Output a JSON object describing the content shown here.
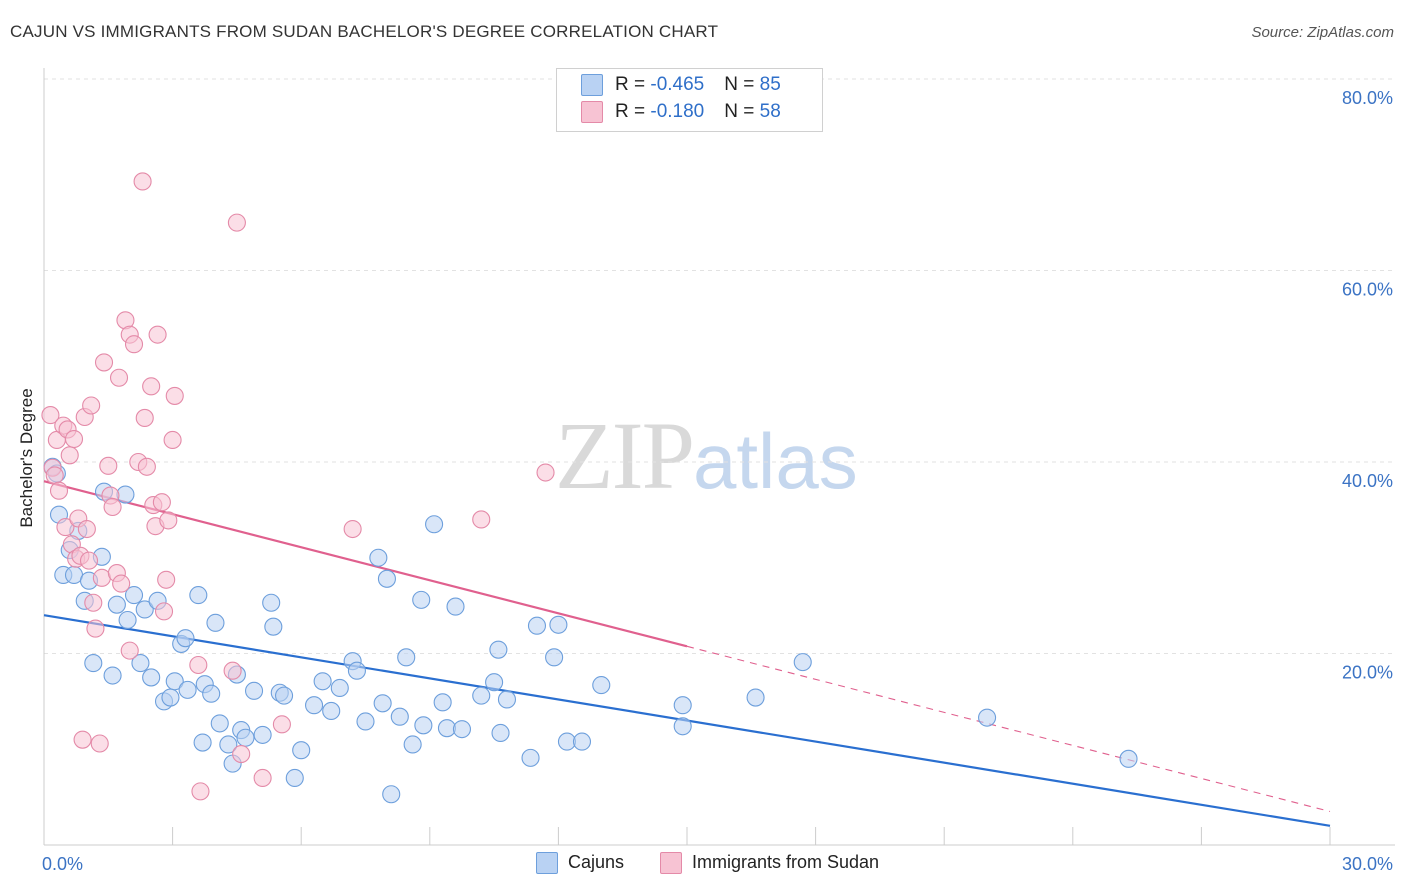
{
  "title": "CAJUN VS IMMIGRANTS FROM SUDAN BACHELOR'S DEGREE CORRELATION CHART",
  "source": "Source: ZipAtlas.com",
  "watermark": {
    "zip": "ZIP",
    "atlas": "atlas"
  },
  "legend": {
    "series1": {
      "r_label": "R = ",
      "r_value": "-0.465",
      "n_label": "N = ",
      "n_value": "85"
    },
    "series2": {
      "r_label": "R = ",
      "r_value": "-0.180",
      "n_label": "N = ",
      "n_value": "58"
    }
  },
  "colors": {
    "blue_fill": "#b9d2f3",
    "blue_stroke": "#6d9fdc",
    "blue_line": "#2a6fd0",
    "pink_fill": "#f7c3d3",
    "pink_stroke": "#e48aa8",
    "pink_line": "#e0608e",
    "axis_label": "#3b73c4",
    "grid": "#e2e2e2"
  },
  "chart_data": {
    "type": "scatter",
    "title": "CAJUN VS IMMIGRANTS FROM SUDAN BACHELOR'S DEGREE CORRELATION CHART",
    "xlabel": "",
    "ylabel": "Bachelor's Degree",
    "xlim": [
      0,
      30
    ],
    "ylim": [
      0,
      80
    ],
    "x_tick_labels": [
      "0.0%",
      "30.0%"
    ],
    "y_tick_values": [
      20,
      40,
      60,
      80
    ],
    "y_tick_labels": [
      "20.0%",
      "40.0%",
      "60.0%",
      "80.0%"
    ],
    "legend_position": "top-center",
    "series": [
      {
        "name": "Cajuns",
        "color": "blue",
        "trend": {
          "x": [
            0,
            30
          ],
          "y": [
            24.0,
            2.0
          ],
          "dashed_from": null
        },
        "points": [
          [
            0.2,
            39.5
          ],
          [
            0.3,
            38.8
          ],
          [
            0.35,
            34.5
          ],
          [
            0.45,
            28.2
          ],
          [
            0.6,
            30.8
          ],
          [
            0.7,
            28.2
          ],
          [
            0.8,
            32.8
          ],
          [
            0.95,
            25.5
          ],
          [
            1.05,
            27.6
          ],
          [
            1.15,
            19.0
          ],
          [
            1.35,
            30.1
          ],
          [
            1.4,
            36.9
          ],
          [
            1.6,
            17.7
          ],
          [
            1.7,
            25.1
          ],
          [
            1.9,
            36.6
          ],
          [
            1.95,
            23.5
          ],
          [
            2.1,
            26.1
          ],
          [
            2.25,
            19.0
          ],
          [
            2.35,
            24.6
          ],
          [
            2.5,
            17.5
          ],
          [
            2.65,
            25.5
          ],
          [
            2.8,
            15.0
          ],
          [
            2.95,
            15.4
          ],
          [
            3.05,
            17.1
          ],
          [
            3.2,
            21.0
          ],
          [
            3.3,
            21.6
          ],
          [
            3.35,
            16.2
          ],
          [
            3.6,
            26.1
          ],
          [
            3.7,
            10.7
          ],
          [
            3.75,
            16.8
          ],
          [
            3.9,
            15.8
          ],
          [
            4.0,
            23.2
          ],
          [
            4.1,
            12.7
          ],
          [
            4.3,
            10.5
          ],
          [
            4.4,
            8.5
          ],
          [
            4.5,
            17.8
          ],
          [
            4.6,
            12.0
          ],
          [
            4.7,
            11.2
          ],
          [
            4.9,
            16.1
          ],
          [
            5.1,
            11.5
          ],
          [
            5.3,
            25.3
          ],
          [
            5.35,
            22.8
          ],
          [
            5.5,
            15.9
          ],
          [
            5.6,
            15.6
          ],
          [
            5.85,
            7.0
          ],
          [
            6.0,
            9.9
          ],
          [
            6.3,
            14.6
          ],
          [
            6.5,
            17.1
          ],
          [
            6.7,
            14.0
          ],
          [
            6.9,
            16.4
          ],
          [
            7.2,
            19.2
          ],
          [
            7.3,
            18.2
          ],
          [
            7.5,
            12.9
          ],
          [
            7.9,
            14.8
          ],
          [
            7.8,
            30.0
          ],
          [
            8.0,
            27.8
          ],
          [
            8.1,
            5.3
          ],
          [
            8.3,
            13.4
          ],
          [
            8.45,
            19.6
          ],
          [
            8.6,
            10.5
          ],
          [
            8.8,
            25.6
          ],
          [
            8.85,
            12.5
          ],
          [
            9.1,
            33.5
          ],
          [
            9.3,
            14.9
          ],
          [
            9.4,
            12.2
          ],
          [
            9.6,
            24.9
          ],
          [
            9.75,
            12.1
          ],
          [
            10.2,
            15.6
          ],
          [
            10.5,
            17.0
          ],
          [
            10.6,
            20.4
          ],
          [
            10.65,
            11.7
          ],
          [
            10.8,
            15.2
          ],
          [
            11.35,
            9.1
          ],
          [
            11.5,
            22.9
          ],
          [
            11.9,
            19.6
          ],
          [
            12.0,
            23.0
          ],
          [
            12.2,
            10.8
          ],
          [
            12.55,
            10.8
          ],
          [
            13.0,
            16.7
          ],
          [
            14.9,
            12.4
          ],
          [
            14.9,
            14.6
          ],
          [
            16.6,
            15.4
          ],
          [
            17.7,
            19.1
          ],
          [
            22.0,
            13.3
          ],
          [
            25.3,
            9.0
          ]
        ]
      },
      {
        "name": "Immigrants from Sudan",
        "color": "pink",
        "trend": {
          "x": [
            0,
            30
          ],
          "y": [
            38.0,
            3.5
          ],
          "dashed_from": 15.0
        },
        "points": [
          [
            0.15,
            44.9
          ],
          [
            0.2,
            39.4
          ],
          [
            0.25,
            38.6
          ],
          [
            0.3,
            42.3
          ],
          [
            0.35,
            37.0
          ],
          [
            0.45,
            43.8
          ],
          [
            0.5,
            33.2
          ],
          [
            0.55,
            43.4
          ],
          [
            0.6,
            40.7
          ],
          [
            0.65,
            31.4
          ],
          [
            0.7,
            42.4
          ],
          [
            0.75,
            29.9
          ],
          [
            0.8,
            34.1
          ],
          [
            0.85,
            30.2
          ],
          [
            0.9,
            11.0
          ],
          [
            0.95,
            44.7
          ],
          [
            1.0,
            33.0
          ],
          [
            1.05,
            29.7
          ],
          [
            1.1,
            45.9
          ],
          [
            1.15,
            25.3
          ],
          [
            1.2,
            22.6
          ],
          [
            1.3,
            10.6
          ],
          [
            1.35,
            27.9
          ],
          [
            1.4,
            50.4
          ],
          [
            1.5,
            39.6
          ],
          [
            1.55,
            36.5
          ],
          [
            1.6,
            35.3
          ],
          [
            1.7,
            28.4
          ],
          [
            1.75,
            48.8
          ],
          [
            1.8,
            27.3
          ],
          [
            1.9,
            54.8
          ],
          [
            2.0,
            53.3
          ],
          [
            2.1,
            52.3
          ],
          [
            2.2,
            40.0
          ],
          [
            2.3,
            69.3
          ],
          [
            2.35,
            44.6
          ],
          [
            2.4,
            39.5
          ],
          [
            2.5,
            47.9
          ],
          [
            2.55,
            35.5
          ],
          [
            2.6,
            33.3
          ],
          [
            2.65,
            53.3
          ],
          [
            2.75,
            35.8
          ],
          [
            2.8,
            24.4
          ],
          [
            2.85,
            27.7
          ],
          [
            2.9,
            33.9
          ],
          [
            3.0,
            42.3
          ],
          [
            3.05,
            46.9
          ],
          [
            3.6,
            18.8
          ],
          [
            3.65,
            5.6
          ],
          [
            4.4,
            18.2
          ],
          [
            4.5,
            65.0
          ],
          [
            4.6,
            9.5
          ],
          [
            5.1,
            7.0
          ],
          [
            5.55,
            12.6
          ],
          [
            7.2,
            33.0
          ],
          [
            10.2,
            34.0
          ],
          [
            11.7,
            38.9
          ],
          [
            2.0,
            20.3
          ]
        ]
      }
    ]
  }
}
